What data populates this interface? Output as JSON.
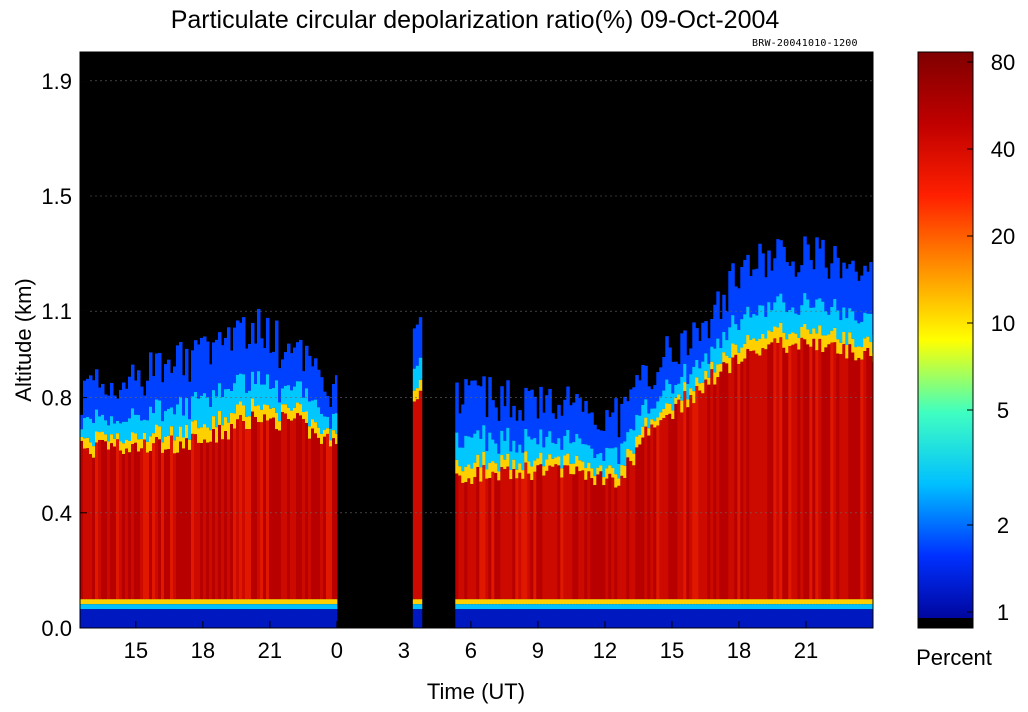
{
  "chart_data": {
    "type": "heatmap",
    "title": "Particulate circular depolarization ratio(%)  09-Oct-2004",
    "file_stamp": "BRW-20041010-1200",
    "xlabel": "Time (UT)",
    "ylabel": "Altitude (km)",
    "x_range_hours": [
      12.5,
      48.0
    ],
    "x_ticks": [
      {
        "hour": 15,
        "label": "15"
      },
      {
        "hour": 18,
        "label": "18"
      },
      {
        "hour": 21,
        "label": "21"
      },
      {
        "hour": 24,
        "label": "0"
      },
      {
        "hour": 27,
        "label": "3"
      },
      {
        "hour": 30,
        "label": "6"
      },
      {
        "hour": 33,
        "label": "9"
      },
      {
        "hour": 36,
        "label": "12"
      },
      {
        "hour": 39,
        "label": "15"
      },
      {
        "hour": 42,
        "label": "18"
      },
      {
        "hour": 45,
        "label": "21"
      }
    ],
    "ylim": [
      0.0,
      2.0
    ],
    "y_ticks": [
      {
        "value": 0.0,
        "label": "0.0"
      },
      {
        "value": 0.4,
        "label": "0.4"
      },
      {
        "value": 0.8,
        "label": "0.8"
      },
      {
        "value": 1.1,
        "label": "1.1"
      },
      {
        "value": 1.5,
        "label": "1.5"
      },
      {
        "value": 1.9,
        "label": "1.9"
      }
    ],
    "colorbar": {
      "scale": "log",
      "range_percent": [
        1,
        80
      ],
      "ticks": [
        "80",
        "40",
        "20",
        "10",
        "5",
        "2",
        "1"
      ],
      "label": "Percent"
    },
    "colormap": [
      "#00008f",
      "#0030ff",
      "#00c0ff",
      "#40ffc0",
      "#ffff00",
      "#ff9000",
      "#ff2000",
      "#c00000",
      "#800000"
    ],
    "background_color": "#000000",
    "data_segments": [
      {
        "start_hour": 12.5,
        "end_hour": 24.0
      },
      {
        "start_hour": 27.4,
        "end_hour": 27.8
      },
      {
        "start_hour": 29.3,
        "end_hour": 48.0
      }
    ],
    "boundary_profile": [
      {
        "hour": 12.5,
        "cloud_top_km": 0.82,
        "aerosol_top_km": 0.62
      },
      {
        "hour": 15.0,
        "cloud_top_km": 0.86,
        "aerosol_top_km": 0.63
      },
      {
        "hour": 18.0,
        "cloud_top_km": 0.95,
        "aerosol_top_km": 0.65
      },
      {
        "hour": 20.0,
        "cloud_top_km": 1.05,
        "aerosol_top_km": 0.72
      },
      {
        "hour": 22.0,
        "cloud_top_km": 0.95,
        "aerosol_top_km": 0.72
      },
      {
        "hour": 24.0,
        "cloud_top_km": 0.8,
        "aerosol_top_km": 0.62
      },
      {
        "hour": 27.4,
        "cloud_top_km": 1.02,
        "aerosol_top_km": 0.82
      },
      {
        "hour": 27.8,
        "cloud_top_km": 1.0,
        "aerosol_top_km": 0.82
      },
      {
        "hour": 29.3,
        "cloud_top_km": 0.82,
        "aerosol_top_km": 0.52
      },
      {
        "hour": 32.0,
        "cloud_top_km": 0.78,
        "aerosol_top_km": 0.55
      },
      {
        "hour": 35.0,
        "cloud_top_km": 0.78,
        "aerosol_top_km": 0.54
      },
      {
        "hour": 36.5,
        "cloud_top_km": 0.72,
        "aerosol_top_km": 0.5
      },
      {
        "hour": 38.0,
        "cloud_top_km": 0.9,
        "aerosol_top_km": 0.7
      },
      {
        "hour": 40.5,
        "cloud_top_km": 1.05,
        "aerosol_top_km": 0.85
      },
      {
        "hour": 42.0,
        "cloud_top_km": 1.25,
        "aerosol_top_km": 0.95
      },
      {
        "hour": 45.0,
        "cloud_top_km": 1.3,
        "aerosol_top_km": 1.0
      },
      {
        "hour": 48.0,
        "cloud_top_km": 1.2,
        "aerosol_top_km": 0.95
      }
    ],
    "surface_layer_km": 0.1,
    "grid": true
  }
}
